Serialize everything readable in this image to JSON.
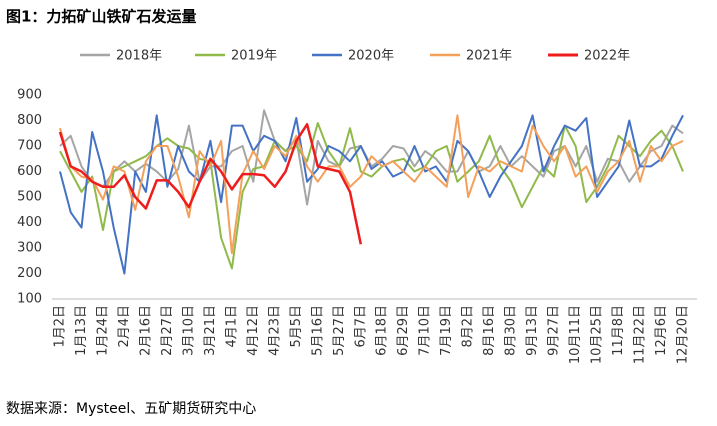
{
  "chart_data": {
    "type": "line",
    "title": "图1：力拓矿山铁矿石发运量",
    "source": "数据来源：Mysteel、五矿期货研究中心",
    "categories": [
      "1月2日",
      null,
      "1月13日",
      null,
      "1月24日",
      null,
      "2月4日",
      null,
      "2月16日",
      null,
      "2月27日",
      null,
      "3月10日",
      null,
      "3月21日",
      null,
      "4月1日",
      null,
      "4月12日",
      null,
      "4月23日",
      null,
      "5月5日",
      null,
      "5月16日",
      null,
      "5月27日",
      null,
      "6月7日",
      null,
      "6月18日",
      null,
      "6月29日",
      null,
      "7月10日",
      null,
      "7月19日",
      null,
      "8月2日",
      null,
      "8月16日",
      null,
      "8月30日",
      null,
      "9月13日",
      null,
      "9月27日",
      null,
      "10月11日",
      null,
      "10月25日",
      null,
      "11月8日",
      null,
      "11月22日",
      null,
      "12月6日",
      null,
      "12月20日"
    ],
    "series": [
      {
        "name": "2018年",
        "color": "#a5a5a5",
        "values": [
          700,
          740,
          620,
          560,
          540,
          600,
          640,
          600,
          630,
          600,
          560,
          610,
          780,
          560,
          620,
          620,
          680,
          700,
          560,
          840,
          720,
          680,
          730,
          470,
          720,
          640,
          620,
          690,
          700,
          620,
          650,
          700,
          690,
          620,
          680,
          650,
          600,
          600,
          680,
          600,
          620,
          700,
          620,
          660,
          620,
          580,
          680,
          700,
          620,
          700,
          560,
          650,
          640,
          560,
          620,
          680,
          700,
          780,
          750
        ]
      },
      {
        "name": "2019年",
        "color": "#8fba4a",
        "values": [
          680,
          600,
          520,
          580,
          370,
          600,
          620,
          640,
          660,
          700,
          730,
          700,
          690,
          650,
          640,
          340,
          220,
          520,
          610,
          620,
          720,
          680,
          700,
          640,
          790,
          680,
          620,
          770,
          600,
          580,
          620,
          640,
          650,
          600,
          620,
          680,
          700,
          560,
          600,
          640,
          740,
          620,
          560,
          460,
          540,
          620,
          580,
          780,
          700,
          480,
          540,
          620,
          740,
          700,
          660,
          720,
          760,
          700,
          600
        ]
      },
      {
        "name": "2020年",
        "color": "#4472c4",
        "values": [
          600,
          440,
          380,
          755,
          600,
          380,
          200,
          600,
          520,
          820,
          540,
          700,
          600,
          560,
          720,
          480,
          780,
          780,
          680,
          740,
          720,
          640,
          810,
          560,
          610,
          700,
          680,
          640,
          700,
          610,
          640,
          580,
          600,
          700,
          600,
          620,
          560,
          720,
          680,
          600,
          500,
          580,
          640,
          700,
          820,
          600,
          700,
          780,
          760,
          810,
          500,
          560,
          620,
          800,
          620,
          620,
          650,
          740,
          820
        ]
      },
      {
        "name": "2021年",
        "color": "#f4a05a",
        "values": [
          770,
          620,
          580,
          570,
          490,
          620,
          600,
          450,
          640,
          700,
          700,
          580,
          420,
          680,
          620,
          720,
          280,
          590,
          680,
          610,
          700,
          660,
          740,
          620,
          560,
          620,
          620,
          540,
          580,
          660,
          620,
          640,
          600,
          560,
          620,
          580,
          540,
          820,
          500,
          620,
          600,
          640,
          620,
          600,
          780,
          700,
          640,
          700,
          580,
          620,
          520,
          600,
          640,
          720,
          560,
          700,
          640,
          700,
          720
        ]
      },
      {
        "name": "2022年",
        "color": "#ee1c1c",
        "values": [
          755,
          620,
          600,
          560,
          540,
          540,
          585,
          500,
          455,
          565,
          565,
          520,
          460,
          560,
          650,
          600,
          530,
          590,
          590,
          585,
          540,
          600,
          720,
          785,
          620,
          610,
          600,
          520,
          315,
          null,
          null,
          null,
          null,
          null,
          null,
          null,
          null,
          null,
          null,
          null,
          null,
          null,
          null,
          null,
          null,
          null,
          null,
          null,
          null,
          null,
          null,
          null,
          null,
          null,
          null,
          null,
          null,
          null,
          null
        ]
      }
    ],
    "ylim": [
      100,
      900
    ],
    "yticks": [
      100,
      200,
      300,
      400,
      500,
      600,
      700,
      800,
      900
    ],
    "grid": false
  }
}
